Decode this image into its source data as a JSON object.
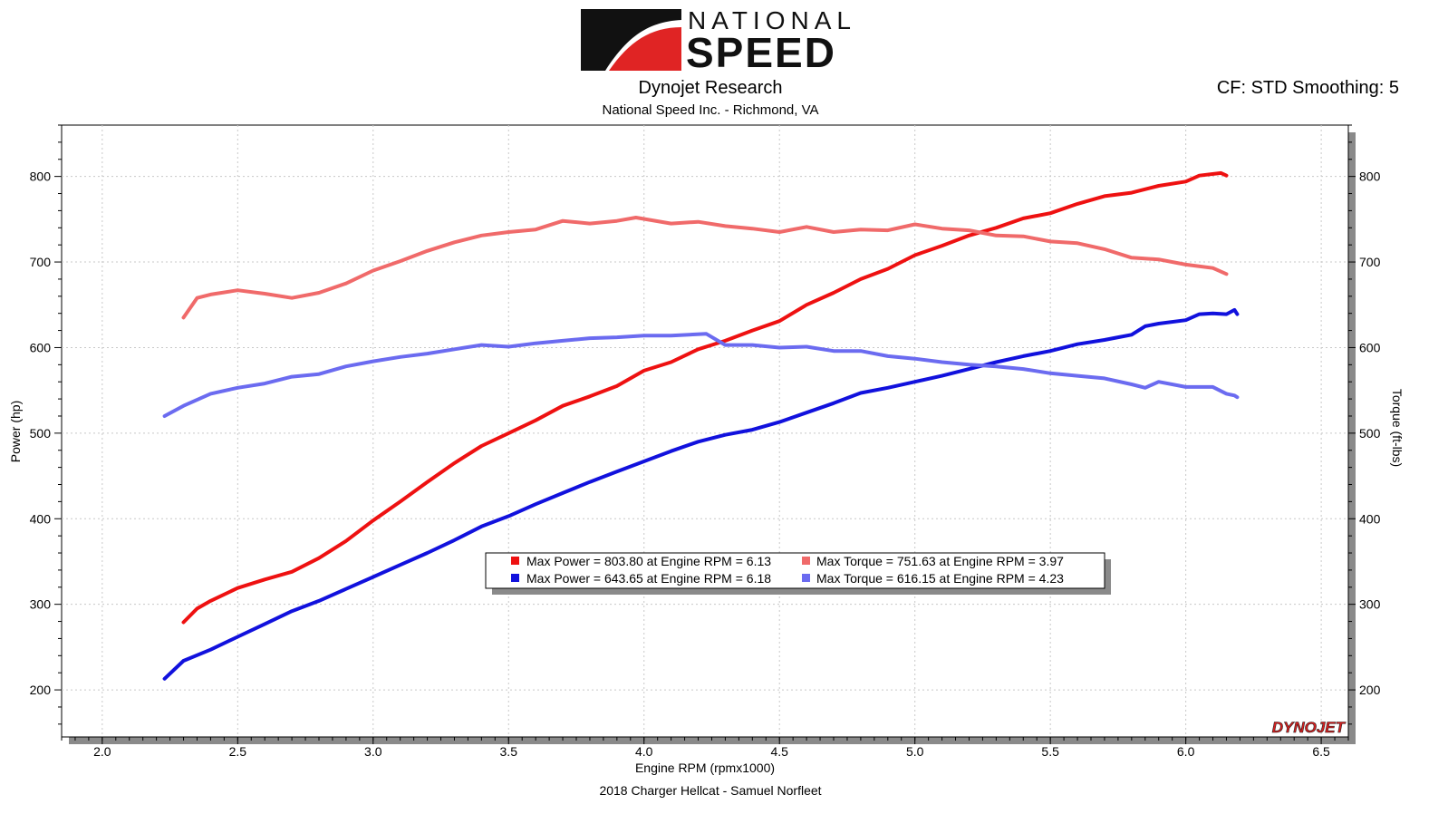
{
  "header": {
    "brand_top": "NATIONAL",
    "brand_bottom": "SPEED",
    "title": "Dynojet Research",
    "subtitle": "National Speed Inc. - Richmond, VA",
    "settings": "CF: STD Smoothing: 5"
  },
  "footer": {
    "caption": "2018 Charger Hellcat - Samuel Norfleet",
    "watermark": "DYNOJET"
  },
  "chart_data": {
    "type": "line",
    "xlabel": "Engine RPM (rpmx1000)",
    "ylabel": "Power (hp)",
    "y2label": "Torque (ft-lbs)",
    "xlim": [
      1.85,
      6.6
    ],
    "ylim": [
      145,
      860
    ],
    "y2lim": [
      145,
      860
    ],
    "x_ticks": [
      "2.0",
      "2.5",
      "3.0",
      "3.5",
      "4.0",
      "4.5",
      "5.0",
      "5.5",
      "6.0",
      "6.5"
    ],
    "y_ticks": [
      200,
      300,
      400,
      500,
      600,
      700,
      800
    ],
    "grid": true,
    "legend_position": "center",
    "legend": [
      {
        "text": "Max Power = 803.80 at Engine RPM = 6.13",
        "color": "#ee1111"
      },
      {
        "text": "Max Torque = 751.63 at Engine RPM = 3.97",
        "color": "#f06a6a"
      },
      {
        "text": "Max Power = 643.65 at Engine RPM = 6.18",
        "color": "#1111dd"
      },
      {
        "text": "Max Torque = 616.15 at Engine RPM = 4.23",
        "color": "#6b6bf0"
      }
    ],
    "series": [
      {
        "color": "#ee1111",
        "axis": "left",
        "points": [
          [
            2.3,
            279
          ],
          [
            2.35,
            295
          ],
          [
            2.4,
            304
          ],
          [
            2.5,
            319
          ],
          [
            2.6,
            329
          ],
          [
            2.7,
            338
          ],
          [
            2.8,
            354
          ],
          [
            2.9,
            374
          ],
          [
            3.0,
            398
          ],
          [
            3.1,
            420
          ],
          [
            3.2,
            443
          ],
          [
            3.3,
            465
          ],
          [
            3.4,
            485
          ],
          [
            3.5,
            500
          ],
          [
            3.6,
            515
          ],
          [
            3.7,
            532
          ],
          [
            3.8,
            543
          ],
          [
            3.9,
            555
          ],
          [
            4.0,
            573
          ],
          [
            4.1,
            583
          ],
          [
            4.2,
            598
          ],
          [
            4.3,
            608
          ],
          [
            4.4,
            620
          ],
          [
            4.5,
            631
          ],
          [
            4.6,
            650
          ],
          [
            4.7,
            664
          ],
          [
            4.8,
            680
          ],
          [
            4.9,
            692
          ],
          [
            5.0,
            708
          ],
          [
            5.1,
            719
          ],
          [
            5.2,
            731
          ],
          [
            5.3,
            740
          ],
          [
            5.4,
            751
          ],
          [
            5.5,
            757
          ],
          [
            5.6,
            768
          ],
          [
            5.7,
            777
          ],
          [
            5.8,
            781
          ],
          [
            5.9,
            789
          ],
          [
            6.0,
            794
          ],
          [
            6.05,
            801
          ],
          [
            6.13,
            804
          ],
          [
            6.15,
            801
          ]
        ]
      },
      {
        "color": "#f06a6a",
        "axis": "right",
        "points": [
          [
            2.3,
            635
          ],
          [
            2.35,
            658
          ],
          [
            2.4,
            662
          ],
          [
            2.5,
            667
          ],
          [
            2.6,
            663
          ],
          [
            2.7,
            658
          ],
          [
            2.8,
            664
          ],
          [
            2.9,
            675
          ],
          [
            3.0,
            690
          ],
          [
            3.1,
            701
          ],
          [
            3.2,
            713
          ],
          [
            3.3,
            723
          ],
          [
            3.4,
            731
          ],
          [
            3.5,
            735
          ],
          [
            3.6,
            738
          ],
          [
            3.7,
            748
          ],
          [
            3.8,
            745
          ],
          [
            3.9,
            748
          ],
          [
            3.97,
            752
          ],
          [
            4.1,
            745
          ],
          [
            4.2,
            747
          ],
          [
            4.3,
            742
          ],
          [
            4.4,
            739
          ],
          [
            4.5,
            735
          ],
          [
            4.6,
            741
          ],
          [
            4.7,
            735
          ],
          [
            4.8,
            738
          ],
          [
            4.9,
            737
          ],
          [
            5.0,
            744
          ],
          [
            5.1,
            739
          ],
          [
            5.2,
            737
          ],
          [
            5.3,
            731
          ],
          [
            5.4,
            730
          ],
          [
            5.5,
            724
          ],
          [
            5.6,
            722
          ],
          [
            5.7,
            715
          ],
          [
            5.8,
            705
          ],
          [
            5.9,
            703
          ],
          [
            6.0,
            697
          ],
          [
            6.1,
            693
          ],
          [
            6.15,
            686
          ]
        ]
      },
      {
        "color": "#1111dd",
        "axis": "left",
        "points": [
          [
            2.23,
            213
          ],
          [
            2.3,
            234
          ],
          [
            2.4,
            247
          ],
          [
            2.5,
            262
          ],
          [
            2.6,
            277
          ],
          [
            2.7,
            292
          ],
          [
            2.8,
            304
          ],
          [
            2.9,
            318
          ],
          [
            3.0,
            332
          ],
          [
            3.1,
            346
          ],
          [
            3.2,
            360
          ],
          [
            3.3,
            375
          ],
          [
            3.4,
            391
          ],
          [
            3.5,
            403
          ],
          [
            3.6,
            417
          ],
          [
            3.7,
            430
          ],
          [
            3.8,
            443
          ],
          [
            3.9,
            455
          ],
          [
            4.0,
            467
          ],
          [
            4.1,
            479
          ],
          [
            4.2,
            490
          ],
          [
            4.3,
            498
          ],
          [
            4.4,
            504
          ],
          [
            4.5,
            513
          ],
          [
            4.6,
            524
          ],
          [
            4.7,
            535
          ],
          [
            4.8,
            547
          ],
          [
            4.9,
            553
          ],
          [
            5.0,
            560
          ],
          [
            5.1,
            567
          ],
          [
            5.2,
            575
          ],
          [
            5.3,
            583
          ],
          [
            5.4,
            590
          ],
          [
            5.5,
            596
          ],
          [
            5.6,
            604
          ],
          [
            5.7,
            609
          ],
          [
            5.75,
            612
          ],
          [
            5.8,
            615
          ],
          [
            5.85,
            625
          ],
          [
            5.9,
            628
          ],
          [
            6.0,
            632
          ],
          [
            6.05,
            639
          ],
          [
            6.1,
            640
          ],
          [
            6.15,
            639
          ],
          [
            6.18,
            644
          ],
          [
            6.19,
            639
          ]
        ]
      },
      {
        "color": "#6b6bf0",
        "axis": "right",
        "points": [
          [
            2.23,
            520
          ],
          [
            2.3,
            532
          ],
          [
            2.4,
            546
          ],
          [
            2.5,
            553
          ],
          [
            2.6,
            558
          ],
          [
            2.7,
            566
          ],
          [
            2.8,
            569
          ],
          [
            2.9,
            578
          ],
          [
            3.0,
            584
          ],
          [
            3.1,
            589
          ],
          [
            3.2,
            593
          ],
          [
            3.3,
            598
          ],
          [
            3.4,
            603
          ],
          [
            3.5,
            601
          ],
          [
            3.6,
            605
          ],
          [
            3.7,
            608
          ],
          [
            3.8,
            611
          ],
          [
            3.9,
            612
          ],
          [
            4.0,
            614
          ],
          [
            4.1,
            614
          ],
          [
            4.23,
            616
          ],
          [
            4.3,
            603
          ],
          [
            4.4,
            603
          ],
          [
            4.5,
            600
          ],
          [
            4.6,
            601
          ],
          [
            4.7,
            596
          ],
          [
            4.8,
            596
          ],
          [
            4.9,
            590
          ],
          [
            5.0,
            587
          ],
          [
            5.1,
            583
          ],
          [
            5.2,
            580
          ],
          [
            5.3,
            578
          ],
          [
            5.4,
            575
          ],
          [
            5.5,
            570
          ],
          [
            5.6,
            567
          ],
          [
            5.7,
            564
          ],
          [
            5.8,
            557
          ],
          [
            5.85,
            553
          ],
          [
            5.9,
            560
          ],
          [
            6.0,
            554
          ],
          [
            6.1,
            554
          ],
          [
            6.15,
            546
          ],
          [
            6.18,
            544
          ],
          [
            6.19,
            542
          ]
        ]
      }
    ]
  }
}
